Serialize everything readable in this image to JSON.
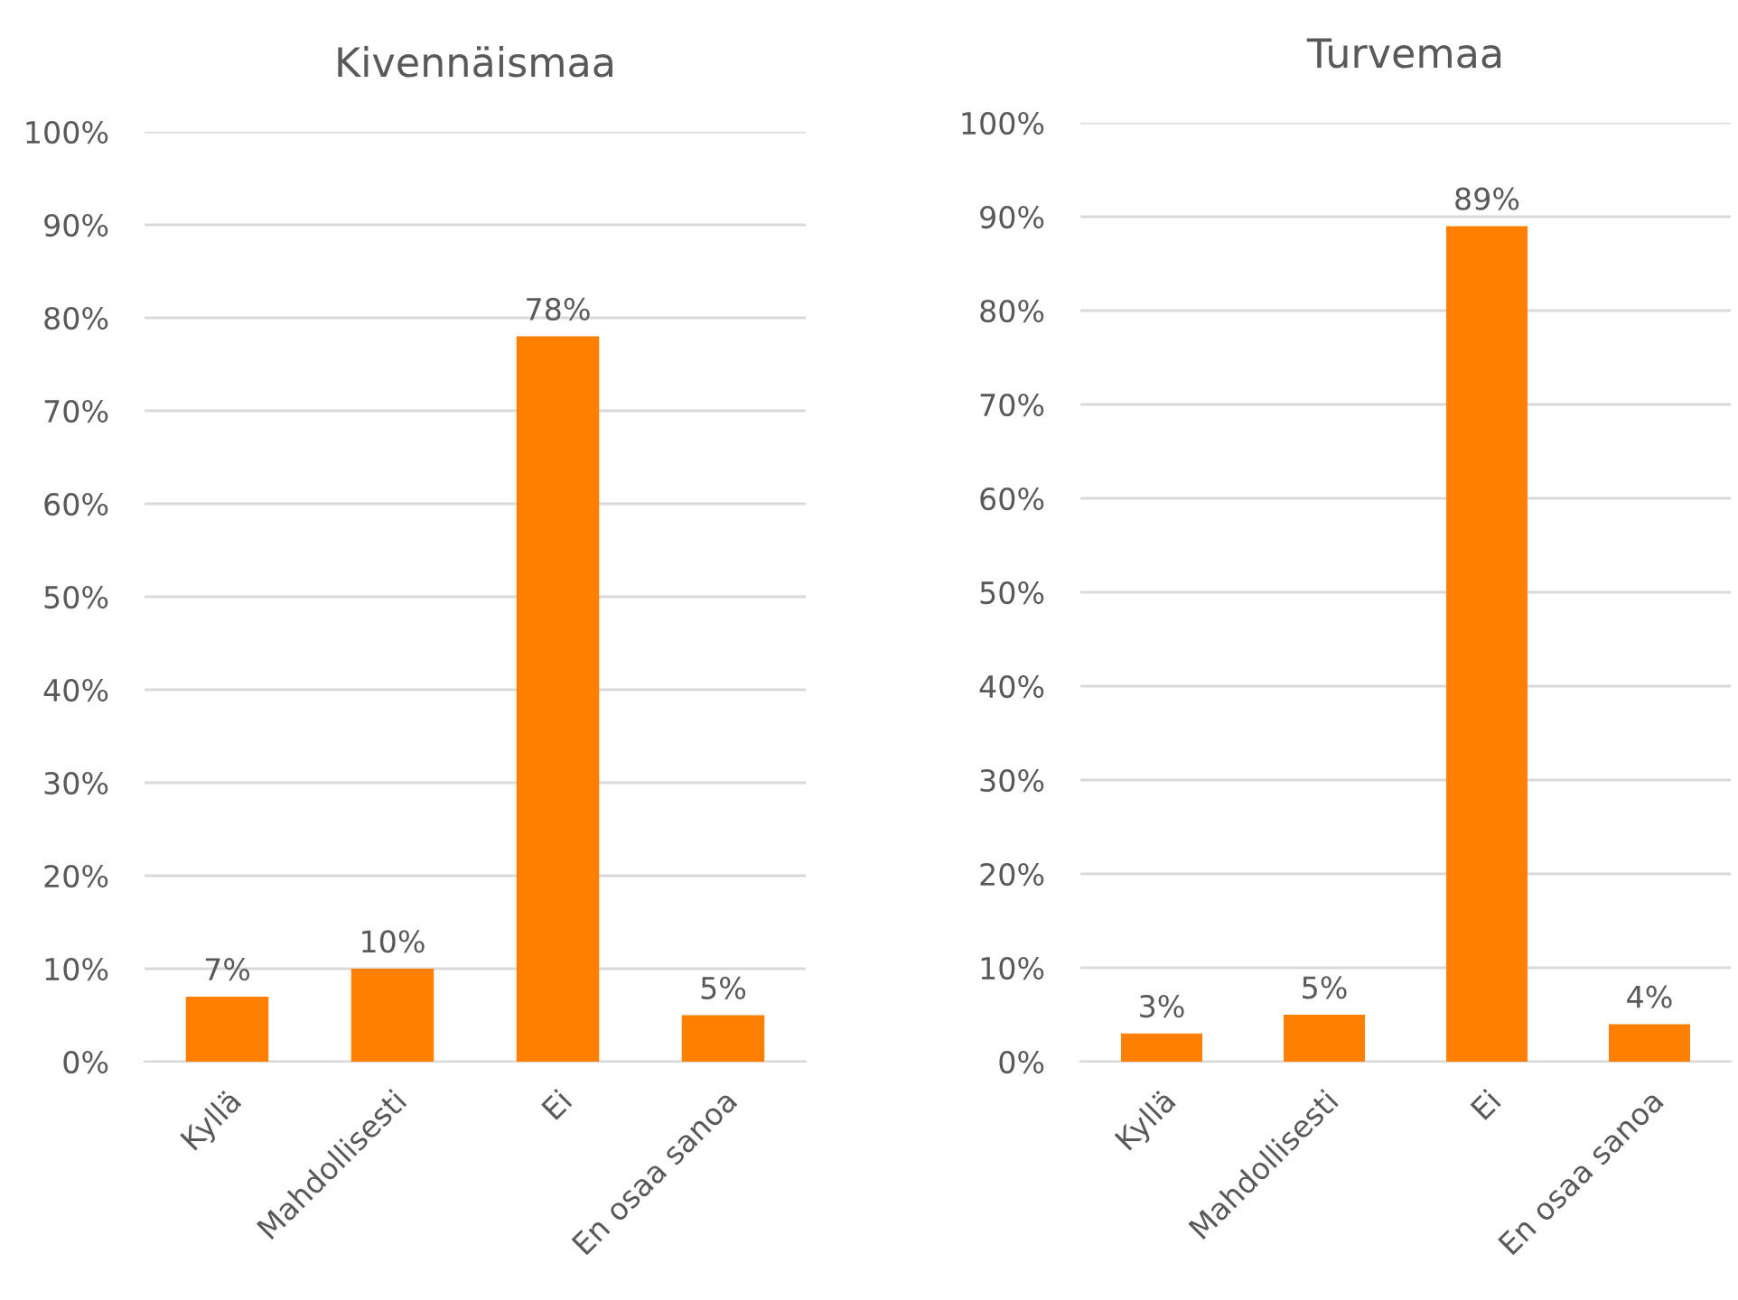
{
  "chart_data": [
    {
      "type": "bar",
      "title": "Kivennäismaa",
      "categories": [
        "Kyllä",
        "Mahdollisesti",
        "Ei",
        "En osaa sanoa"
      ],
      "values": [
        7,
        10,
        78,
        5
      ],
      "value_labels": [
        "7%",
        "10%",
        "78%",
        "5%"
      ],
      "color": "#ff8000",
      "ylim": [
        0,
        100
      ],
      "yticks": [
        {
          "value": 0,
          "label": "0%"
        },
        {
          "value": 10,
          "label": "10%"
        },
        {
          "value": 20,
          "label": "20%"
        },
        {
          "value": 30,
          "label": "30%"
        },
        {
          "value": 40,
          "label": "40%"
        },
        {
          "value": 50,
          "label": "50%"
        },
        {
          "value": 60,
          "label": "60%"
        },
        {
          "value": 70,
          "label": "70%"
        },
        {
          "value": 80,
          "label": "80%"
        },
        {
          "value": 90,
          "label": "90%"
        },
        {
          "value": 100,
          "label": "100%"
        }
      ],
      "grid": "y"
    },
    {
      "type": "bar",
      "title": "Turvemaa",
      "categories": [
        "Kyllä",
        "Mahdollisesti",
        "Ei",
        "En osaa sanoa"
      ],
      "values": [
        3,
        5,
        89,
        4
      ],
      "value_labels": [
        "3%",
        "5%",
        "89%",
        "4%"
      ],
      "color": "#ff8000",
      "ylim": [
        0,
        100
      ],
      "yticks": [
        {
          "value": 0,
          "label": "0%"
        },
        {
          "value": 10,
          "label": "10%"
        },
        {
          "value": 20,
          "label": "20%"
        },
        {
          "value": 30,
          "label": "30%"
        },
        {
          "value": 40,
          "label": "40%"
        },
        {
          "value": 50,
          "label": "50%"
        },
        {
          "value": 60,
          "label": "60%"
        },
        {
          "value": 70,
          "label": "70%"
        },
        {
          "value": 80,
          "label": "80%"
        },
        {
          "value": 90,
          "label": "90%"
        },
        {
          "value": 100,
          "label": "100%"
        }
      ],
      "grid": "y"
    }
  ]
}
